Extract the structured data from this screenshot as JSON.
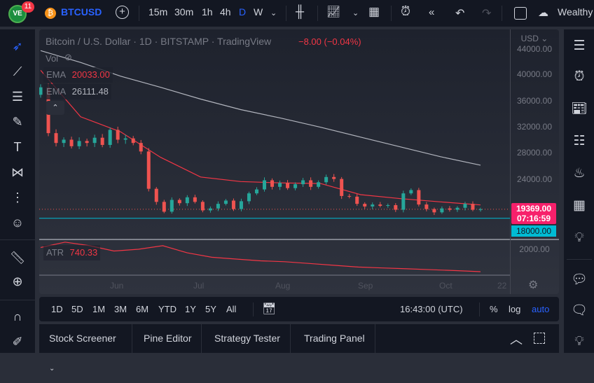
{
  "topbar": {
    "logo_badge": "11",
    "symbol": "BTCUSD",
    "intervals": [
      "15m",
      "30m",
      "1h",
      "4h",
      "D",
      "W"
    ],
    "active_interval": "D",
    "layout_name": "Wealthy"
  },
  "legend": {
    "title": "Bitcoin / U.S. Dollar · 1D · BITSTAMP · TradingView",
    "change": "−8.00 (−0.04%)",
    "vol_label": "Vol",
    "ema1_label": "EMA",
    "ema1_value": "20033.00",
    "ema2_label": "EMA",
    "ema2_value": "26111.48",
    "atr_label": "ATR",
    "atr_value": "740.33"
  },
  "price_axis": {
    "currency": "USD",
    "ticks": [
      "44000.00",
      "40000.00",
      "36000.00",
      "32000.00",
      "28000.00",
      "24000.00"
    ],
    "last_price": "19369.00",
    "countdown": "07:16:59",
    "line_price": "18000.00",
    "atr_tick": "2000.00"
  },
  "time_axis": {
    "ticks": [
      "Jun",
      "Jul",
      "Aug",
      "Sep",
      "Oct",
      "22"
    ]
  },
  "bottombar": {
    "ranges": [
      "1D",
      "5D",
      "1M",
      "3M",
      "6M",
      "YTD",
      "1Y",
      "5Y",
      "All"
    ],
    "clock": "16:43:00 (UTC)",
    "percent": "%",
    "log": "log",
    "auto": "auto"
  },
  "panels": {
    "tabs": [
      "Stock Screener",
      "Pine Editor",
      "Strategy Tester",
      "Trading Panel"
    ]
  },
  "colors": {
    "up": "#26a69a",
    "down": "#ef5350",
    "ema_fast": "#f23645",
    "ema_slow": "#b2b5be",
    "last_price": "#f7206b",
    "horizontal_line": "#00bcd4",
    "accent": "#2962ff"
  },
  "chart_data": {
    "type": "candlestick",
    "closes": [
      38000,
      31000,
      29500,
      30000,
      29000,
      29800,
      29500,
      30300,
      29200,
      31500,
      30000,
      30200,
      29500,
      28200,
      22500,
      20500,
      19000,
      20800,
      20300,
      21200,
      20500,
      19200,
      19500,
      20200,
      20700,
      19400,
      20600,
      21800,
      22400,
      23800,
      22800,
      23400,
      22600,
      23200,
      23800,
      22800,
      23500,
      24300,
      24000,
      21400,
      21300,
      20200,
      19800,
      20100,
      19900,
      20000,
      19300,
      21800,
      22300,
      20100,
      19400,
      18900,
      19500,
      19300,
      19600,
      20200,
      19300,
      19369
    ],
    "ema_fast": [
      40600,
      33500,
      31200,
      27300,
      24300,
      23600,
      23400,
      23300,
      21600,
      21000,
      20500,
      20033
    ],
    "ema_slow": [
      43600,
      41800,
      39700,
      38000,
      36200,
      34600,
      33300,
      31900,
      30400,
      28900,
      27400,
      26111.48
    ],
    "atr": [
      2100,
      2400,
      2200,
      1900,
      2000,
      2200,
      1800,
      1550,
      1450,
      1350,
      1300,
      1200,
      1100,
      1000,
      950,
      900,
      850,
      800,
      740.33
    ],
    "horizontal_line": 18000,
    "last_price": 19369
  }
}
